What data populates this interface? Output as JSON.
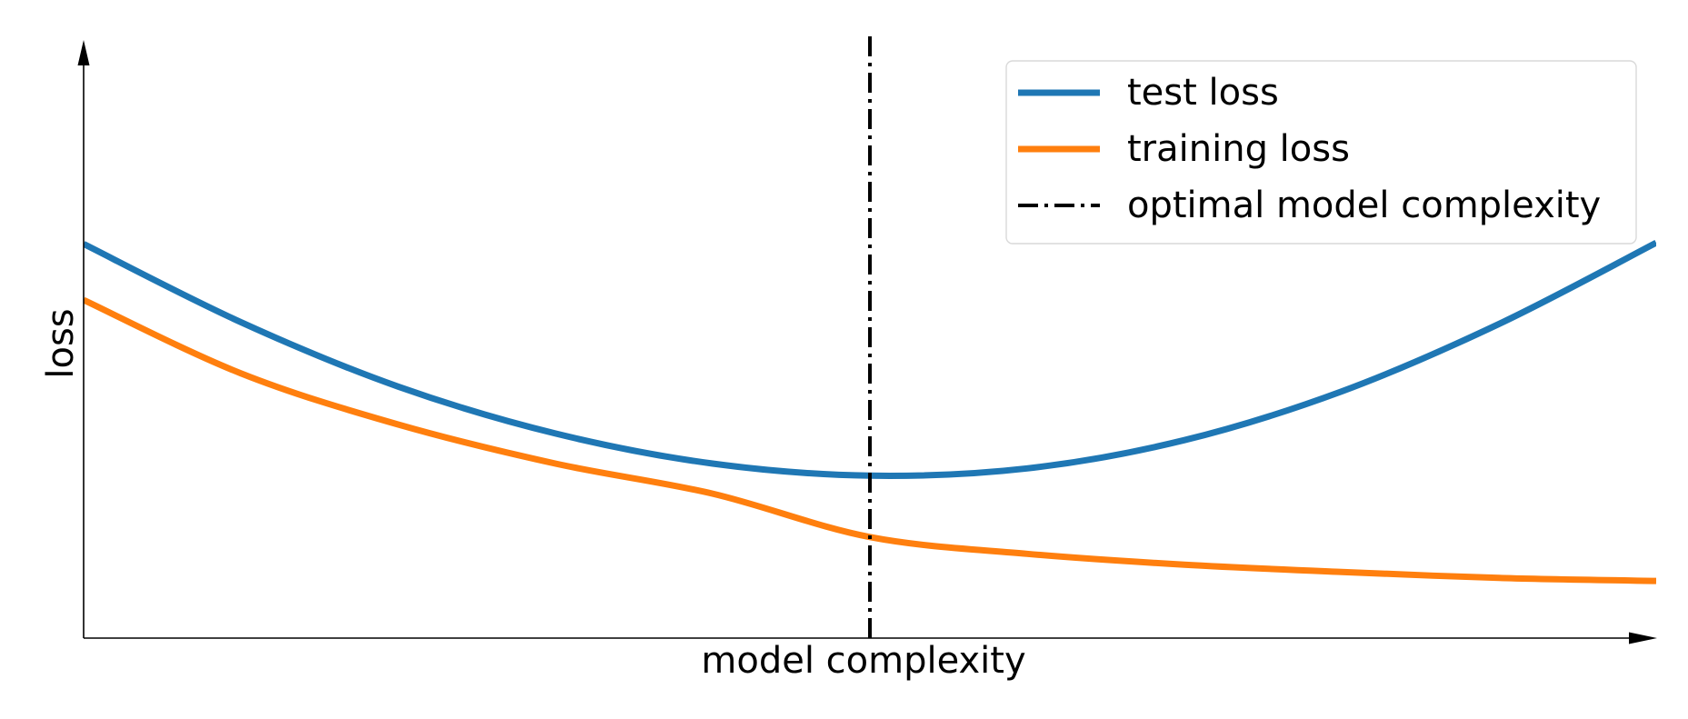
{
  "chart_data": {
    "type": "line",
    "title": "",
    "xlabel": "model complexity",
    "ylabel": "loss",
    "xticks": [],
    "yticks": [],
    "xlim": [
      0,
      1
    ],
    "ylim": [
      0,
      1
    ],
    "grid": false,
    "legend_location": "top-right",
    "series": [
      {
        "name": "test loss",
        "color": "#1f77b4",
        "style": "solid",
        "points": [
          [
            0.0,
            0.655
          ],
          [
            0.1,
            0.525
          ],
          [
            0.2,
            0.418
          ],
          [
            0.3,
            0.34
          ],
          [
            0.4,
            0.29
          ],
          [
            0.5,
            0.27
          ],
          [
            0.6,
            0.282
          ],
          [
            0.7,
            0.329
          ],
          [
            0.8,
            0.41
          ],
          [
            0.9,
            0.522
          ],
          [
            1.0,
            0.657
          ]
        ]
      },
      {
        "name": "training loss",
        "color": "#ff7f0e",
        "style": "solid",
        "points": [
          [
            0.0,
            0.562
          ],
          [
            0.1,
            0.44
          ],
          [
            0.2,
            0.355
          ],
          [
            0.3,
            0.29
          ],
          [
            0.4,
            0.24
          ],
          [
            0.5,
            0.168
          ],
          [
            0.6,
            0.14
          ],
          [
            0.7,
            0.122
          ],
          [
            0.8,
            0.11
          ],
          [
            0.9,
            0.1
          ],
          [
            1.0,
            0.095
          ]
        ]
      },
      {
        "name": "optimal model complexity",
        "color": "#000000",
        "style": "dash-dot",
        "x": 0.5
      }
    ]
  }
}
